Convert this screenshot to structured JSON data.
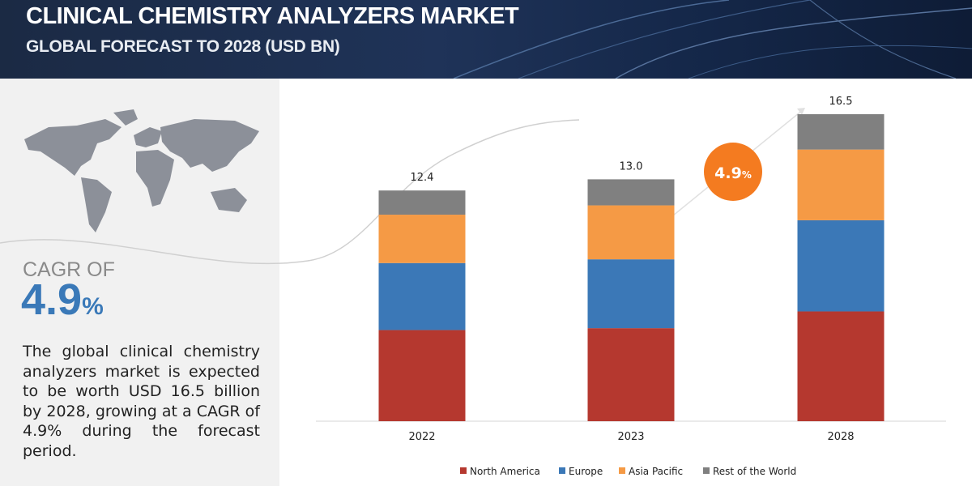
{
  "header": {
    "title": "CLINICAL CHEMISTRY ANALYZERS MARKET",
    "subtitle": "GLOBAL FORECAST TO 2028 (USD BN)"
  },
  "sidebar": {
    "cagr_label": "CAGR OF",
    "cagr_value": "4.9",
    "cagr_unit": "%",
    "description": "The global clinical chemistry analyzers market is expected to be worth USD 16.5 billion by 2028, growing at a CAGR of 4.9% during the forecast period."
  },
  "chart_data": {
    "type": "stacked_bar",
    "categories": [
      "2022",
      "2023",
      "2028"
    ],
    "series": [
      {
        "name": "North America",
        "color": "#b5382f",
        "values": [
          4.9,
          5.0,
          5.9
        ]
      },
      {
        "name": "Europe",
        "color": "#3b78b7",
        "values": [
          3.6,
          3.7,
          4.9
        ]
      },
      {
        "name": "Asia Pacific",
        "color": "#f59a45",
        "values": [
          2.6,
          2.9,
          3.8
        ]
      },
      {
        "name": "Rest of the World",
        "color": "#808080",
        "values": [
          1.3,
          1.4,
          1.9
        ]
      }
    ],
    "totals": [
      12.4,
      13.0,
      16.5
    ],
    "total_labels": [
      "12.4",
      "13.0",
      "16.5"
    ],
    "annotation": {
      "value": "4.9",
      "unit": "%",
      "color": "#f47b20"
    },
    "legend": "bottom"
  }
}
